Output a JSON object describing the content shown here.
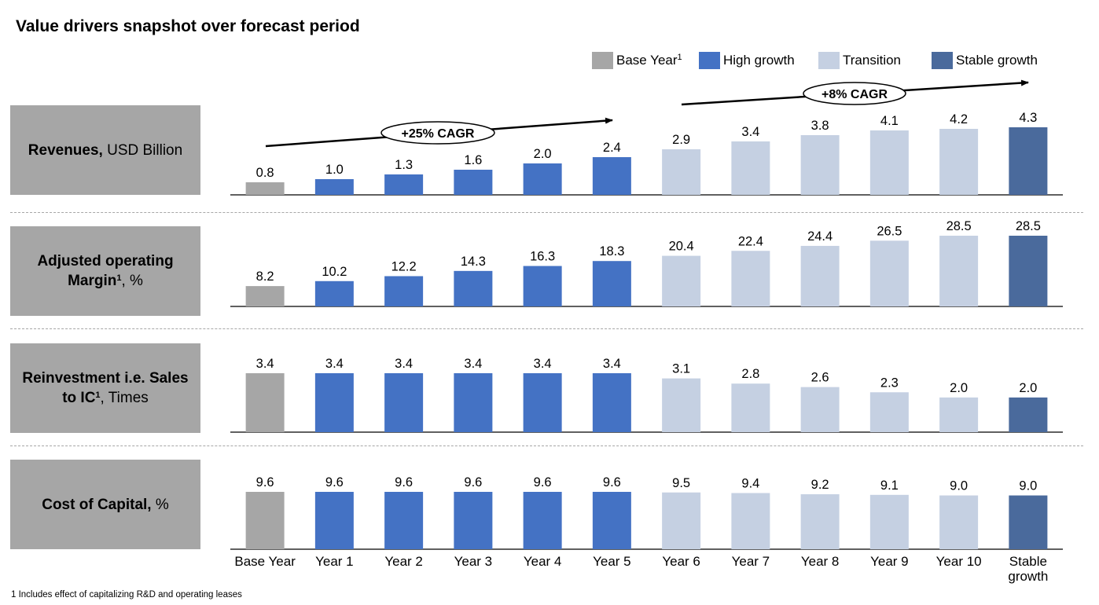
{
  "title": "Value drivers snapshot over forecast period",
  "footnote": "1 Includes effect of capitalizing R&D and operating leases",
  "legend": [
    {
      "label": "Base Year",
      "sup": "1",
      "color": "#a6a6a6"
    },
    {
      "label": "High growth",
      "sup": "",
      "color": "#4472c4"
    },
    {
      "label": "Transition",
      "sup": "",
      "color": "#c5d0e2"
    },
    {
      "label": "Stable growth",
      "sup": "",
      "color": "#4a6a9c"
    }
  ],
  "rows": [
    {
      "label_bold": "Revenues,",
      "label_rest": " USD Billion"
    },
    {
      "label_bold": "Adjusted operating Margin",
      "label_sup": "1",
      "label_rest": ", %"
    },
    {
      "label_bold": "Reinvestment i.e. Sales to IC",
      "label_sup": "1",
      "label_rest": ", Times"
    },
    {
      "label_bold": "Cost of Capital,",
      "label_rest": " %"
    }
  ],
  "annotations": [
    {
      "text": "+25% CAGR"
    },
    {
      "text": "+8% CAGR"
    }
  ],
  "chart_data": {
    "type": "bar",
    "categories": [
      "Base Year",
      "Year 1",
      "Year 2",
      "Year 3",
      "Year 4",
      "Year 5",
      "Year 6",
      "Year 7",
      "Year 8",
      "Year 9",
      "Year 10",
      "Stable growth"
    ],
    "category_phase": [
      "Base Year",
      "High growth",
      "High growth",
      "High growth",
      "High growth",
      "High growth",
      "Transition",
      "Transition",
      "Transition",
      "Transition",
      "Transition",
      "Stable growth"
    ],
    "panels": [
      {
        "name": "Revenues, USD Billion",
        "values": [
          0.8,
          1.0,
          1.3,
          1.6,
          2.0,
          2.4,
          2.9,
          3.4,
          3.8,
          4.1,
          4.2,
          4.3
        ]
      },
      {
        "name": "Adjusted operating Margin, %",
        "values": [
          8.2,
          10.2,
          12.2,
          14.3,
          16.3,
          18.3,
          20.4,
          22.4,
          24.4,
          26.5,
          28.5,
          28.5
        ]
      },
      {
        "name": "Reinvestment i.e. Sales to IC, Times",
        "values": [
          3.4,
          3.4,
          3.4,
          3.4,
          3.4,
          3.4,
          3.1,
          2.8,
          2.6,
          2.3,
          2.0,
          2.0
        ]
      },
      {
        "name": "Cost of Capital, %",
        "values": [
          9.6,
          9.6,
          9.6,
          9.6,
          9.6,
          9.6,
          9.5,
          9.4,
          9.2,
          9.1,
          9.0,
          9.0
        ]
      }
    ]
  }
}
